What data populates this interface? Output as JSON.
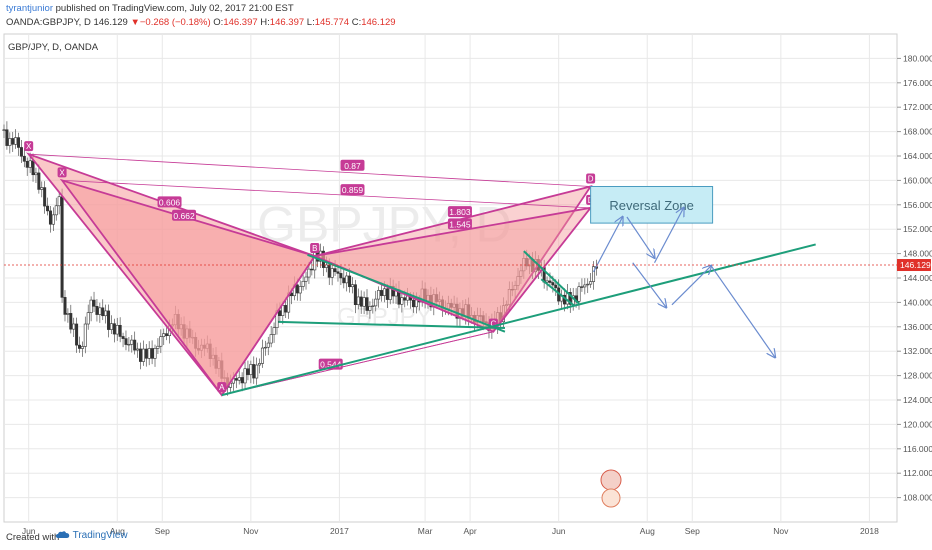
{
  "header": {
    "author": "tyrantjunior",
    "published_text": "published on TradingView.com, July 02, 2017 21:00 EST",
    "symbol": "OANDA:GBPJPY, D",
    "last": "146.129",
    "change_arrow": "▼",
    "change": "−0.268 (−0.18%)",
    "open_label": "O:",
    "open": "146.397",
    "high_label": "H:",
    "high": "146.397",
    "low_label": "L:",
    "low": "145.774",
    "close_label": "C:",
    "close": "146.129"
  },
  "symbol_label": "GBP/JPY, D, OANDA",
  "watermark": {
    "top": "GBPJPY, D",
    "bottom": "GBPJPY"
  },
  "footer": {
    "created_with": "Created with",
    "brand": "TradingView"
  },
  "chart_data": {
    "type": "line",
    "title": "GBP/JPY, D, OANDA",
    "y_axis": {
      "ylim": [
        104,
        184
      ],
      "ticks": [
        108,
        112,
        116,
        120,
        124,
        128,
        132,
        136,
        140,
        144,
        148,
        152,
        156,
        160,
        164,
        168,
        172,
        176,
        180
      ],
      "current_price": "146.129"
    },
    "x_axis": {
      "tick_labels": [
        "Jun",
        "Aug",
        "Sep",
        "Nov",
        "2017",
        "Mar",
        "Apr",
        "Jun",
        "Aug",
        "Sep",
        "Nov",
        "2018"
      ],
      "tick_dates": [
        "2016-06-01",
        "2016-08-01",
        "2016-09-01",
        "2016-11-01",
        "2017-01-01",
        "2017-03-01",
        "2017-04-01",
        "2017-06-01",
        "2017-08-01",
        "2017-09-01",
        "2017-11-01",
        "2018-01-01"
      ],
      "range": [
        "2016-05-15",
        "2018-01-20"
      ]
    },
    "price_series": {
      "name": "",
      "points": [
        [
          "2016-05-15",
          167
        ],
        [
          "2016-05-22",
          166.5
        ],
        [
          "2016-05-30",
          163
        ],
        [
          "2016-06-08",
          160
        ],
        [
          "2016-06-15",
          153
        ],
        [
          "2016-06-22",
          157
        ],
        [
          "2016-06-24",
          140
        ],
        [
          "2016-06-28",
          138
        ],
        [
          "2016-07-06",
          132
        ],
        [
          "2016-07-14",
          140
        ],
        [
          "2016-07-22",
          138
        ],
        [
          "2016-08-01",
          135
        ],
        [
          "2016-08-15",
          132
        ],
        [
          "2016-08-22",
          131
        ],
        [
          "2016-09-01",
          134
        ],
        [
          "2016-09-08",
          137
        ],
        [
          "2016-09-16",
          135.5
        ],
        [
          "2016-09-24",
          133
        ],
        [
          "2016-10-04",
          132
        ],
        [
          "2016-10-12",
          128
        ],
        [
          "2016-10-18",
          126.5
        ],
        [
          "2016-10-26",
          128
        ],
        [
          "2016-11-04",
          129
        ],
        [
          "2016-11-10",
          132
        ],
        [
          "2016-11-20",
          138
        ],
        [
          "2016-12-01",
          142
        ],
        [
          "2016-12-10",
          144
        ],
        [
          "2016-12-15",
          148
        ],
        [
          "2016-12-26",
          145
        ],
        [
          "2017-01-05",
          144
        ],
        [
          "2017-01-12",
          141
        ],
        [
          "2017-01-20",
          139
        ],
        [
          "2017-02-01",
          142
        ],
        [
          "2017-02-10",
          141
        ],
        [
          "2017-02-20",
          140
        ],
        [
          "2017-03-01",
          141
        ],
        [
          "2017-03-10",
          140
        ],
        [
          "2017-03-20",
          139
        ],
        [
          "2017-03-31",
          138
        ],
        [
          "2017-04-10",
          137
        ],
        [
          "2017-04-17",
          136
        ],
        [
          "2017-04-26",
          140
        ],
        [
          "2017-05-05",
          145
        ],
        [
          "2017-05-11",
          147
        ],
        [
          "2017-05-20",
          145
        ],
        [
          "2017-05-26",
          143
        ],
        [
          "2017-06-06",
          140
        ],
        [
          "2017-06-12",
          141
        ],
        [
          "2017-06-20",
          143
        ],
        [
          "2017-06-28",
          146.129
        ]
      ]
    },
    "patterns": [
      {
        "name": "bat-1",
        "points": {
          "X": [
            "2016-06-01",
            164.3
          ],
          "A": [
            "2016-10-12",
            124.8
          ],
          "B": [
            "2016-12-15",
            147.6
          ],
          "C": [
            "2017-04-17",
            135.2
          ],
          "D": [
            "2017-06-23",
            159
          ]
        },
        "ratios": [
          "0.87",
          "1.803"
        ],
        "label_names": [
          "X",
          "A",
          "B",
          "C",
          "D"
        ]
      },
      {
        "name": "bat-2",
        "points": {
          "X": [
            "2016-06-24",
            160
          ],
          "A": [
            "2016-10-12",
            124.8
          ],
          "B": [
            "2016-12-15",
            147.6
          ],
          "C": [
            "2017-04-17",
            135.2
          ],
          "D": [
            "2017-06-23",
            155.5
          ]
        },
        "ratios": [
          "0.606",
          "0.662",
          "0.859",
          "1.545",
          "0.544"
        ],
        "label_names": [
          "X",
          "A",
          "B",
          "C",
          "D"
        ]
      }
    ],
    "annotations": {
      "reversal_zone": {
        "label": "Reversal Zone",
        "from_date": "2017-06-23",
        "to_date": "2017-09-15",
        "price_top": 159,
        "price_bottom": 153
      },
      "trendlines": [
        {
          "from": [
            "2016-10-12",
            124.8
          ],
          "to": [
            "2017-11-25",
            149.5
          ]
        },
        {
          "from": [
            "2016-11-20",
            136.8
          ],
          "to": [
            "2017-04-25",
            135.8
          ]
        },
        {
          "from": [
            "2016-12-10",
            147.8
          ],
          "to": [
            "2017-04-25",
            135.2
          ]
        },
        {
          "from": [
            "2017-05-08",
            148.4
          ],
          "to": [
            "2017-06-15",
            139.8
          ]
        },
        {
          "from": [
            "2017-05-20",
            143.8
          ],
          "to": [
            "2017-06-12",
            139.4
          ]
        }
      ],
      "scenario_arrows": [
        {
          "from": [
            "2017-06-25",
            145
          ],
          "to": [
            "2017-07-15",
            154
          ]
        },
        {
          "from": [
            "2017-07-18",
            154
          ],
          "to": [
            "2017-08-06",
            147.3
          ]
        },
        {
          "from": [
            "2017-08-06",
            146.5
          ],
          "to": [
            "2017-08-26",
            155.5
          ]
        },
        {
          "from": [
            "2017-07-22",
            146.5
          ],
          "to": [
            "2017-08-14",
            139.2
          ]
        },
        {
          "from": [
            "2017-08-18",
            139.6
          ],
          "to": [
            "2017-09-14",
            146
          ]
        },
        {
          "from": [
            "2017-09-14",
            146
          ],
          "to": [
            "2017-10-28",
            131
          ]
        }
      ]
    }
  },
  "colors": {
    "grid": "#e8e8e8",
    "pattern_fill": "#f59a9a",
    "pattern_stroke": "#c63b96",
    "trend": "#1d9e7a",
    "arrow": "#6b8ccf",
    "zone_fill": "#c6ecf5",
    "zone_stroke": "#4a9cc0",
    "current_line": "#e0312a",
    "candle_up": "#444444",
    "candle_down": "#444444"
  }
}
